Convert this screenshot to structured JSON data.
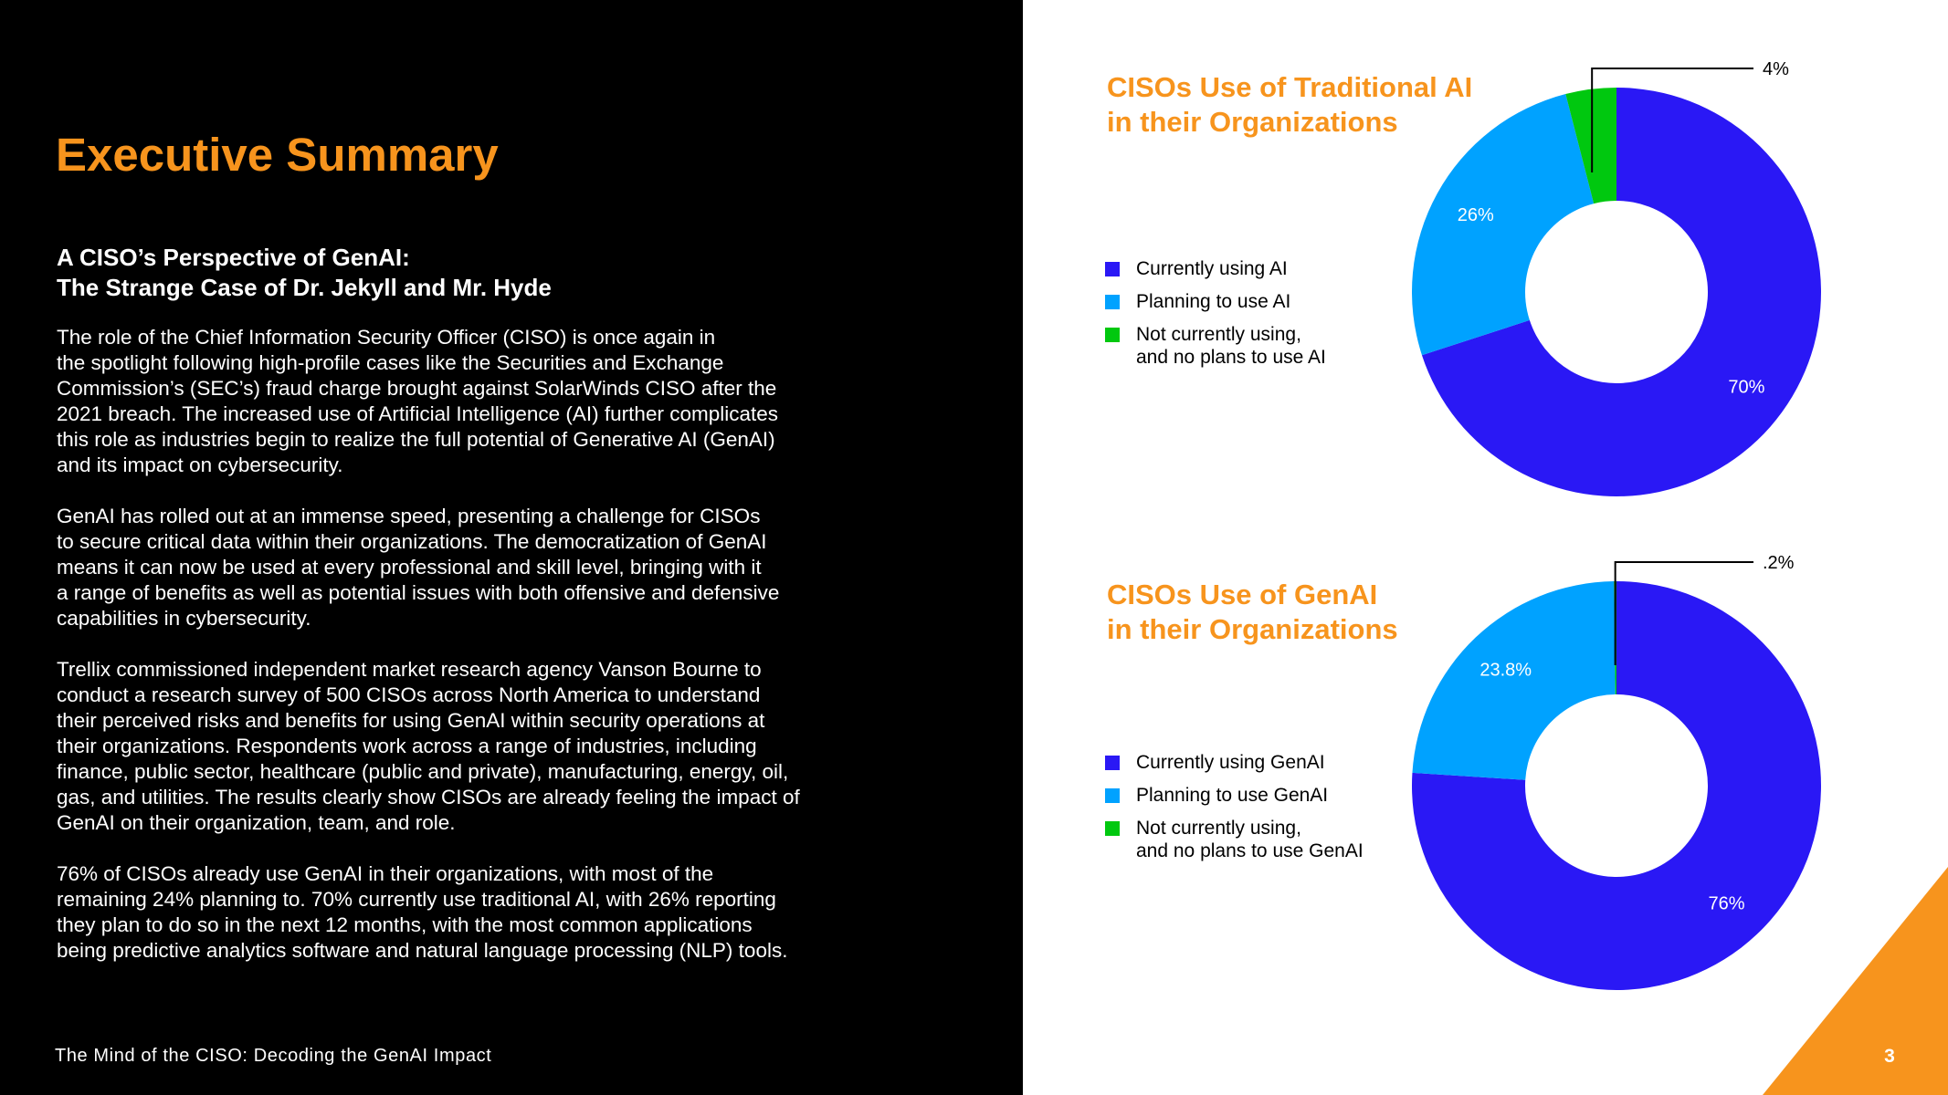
{
  "page": {
    "title": "Executive Summary",
    "subheading": [
      "A CISO’s Perspective of GenAI:",
      "The Strange Case of Dr. Jekyll and Mr. Hyde"
    ],
    "paragraphs": [
      [
        "The role of the Chief Information Security Officer (CISO) is once again in",
        "the spotlight following high-profile cases like the Securities and Exchange",
        "Commission’s (SEC’s) fraud charge brought against SolarWinds CISO after the",
        "2021 breach. The increased use of Artificial Intelligence (AI) further complicates",
        "this role as industries begin to realize the full potential of Generative AI (GenAI)",
        "and its impact on cybersecurity."
      ],
      [
        "GenAI has rolled out at an immense speed, presenting a challenge for CISOs",
        "to secure critical data within their organizations. The democratization of GenAI",
        "means it can now be used at every professional and skill level, bringing with it",
        "a range of benefits as well as potential issues with both offensive and defensive",
        "capabilities in cybersecurity."
      ],
      [
        "Trellix commissioned independent market research agency Vanson Bourne to",
        "conduct a research survey of 500 CISOs across North America to understand",
        "their perceived risks and benefits for using GenAI within security operations at",
        "their organizations. Respondents work across a range of industries, including",
        "finance, public sector, healthcare (public and private), manufacturing, energy, oil,",
        "gas, and utilities. The results clearly show CISOs are already feeling the impact of",
        "GenAI on their organization, team, and role."
      ],
      [
        "76% of CISOs already use GenAI in their organizations, with most of the",
        "remaining 24% planning to. 70% currently use traditional AI, with 26% reporting",
        "they plan to do so in the next 12 months, with the most common applications",
        "being predictive analytics software and natural language processing (NLP) tools."
      ]
    ],
    "footer": "The Mind of the CISO: Decoding the GenAI Impact",
    "page_number": "3"
  },
  "colors": {
    "accent_orange": "#f7941d",
    "current": "#2a18f5",
    "planning": "#00a2ff",
    "not_using": "#00c80f",
    "left_background": "#000000"
  },
  "chart_data": [
    {
      "type": "pie",
      "donut": true,
      "title": [
        "CISOs Use of Traditional AI",
        "in their Organizations"
      ],
      "categories": [
        "Currently using AI",
        "Planning to use AI",
        "Not currently using, and no plans to use AI"
      ],
      "legend_lines": [
        [
          "Currently using AI"
        ],
        [
          "Planning to use AI"
        ],
        [
          "Not currently using,",
          "and no plans to use AI"
        ]
      ],
      "values": [
        70,
        26,
        4
      ],
      "labels": [
        "70%",
        "26%",
        "4%"
      ],
      "colors": [
        "#2a18f5",
        "#00a2ff",
        "#00c80f"
      ],
      "legend_position": "left"
    },
    {
      "type": "pie",
      "donut": true,
      "title": [
        "CISOs Use of GenAI",
        "in their Organizations"
      ],
      "categories": [
        "Currently using GenAI",
        "Planning to use GenAI",
        "Not currently using, and no plans to use GenAI"
      ],
      "legend_lines": [
        [
          "Currently using GenAI"
        ],
        [
          "Planning to use GenAI"
        ],
        [
          "Not currently using,",
          "and no plans to use GenAI"
        ]
      ],
      "values": [
        76,
        23.8,
        0.2
      ],
      "labels": [
        "76%",
        "23.8%",
        ".2%"
      ],
      "colors": [
        "#2a18f5",
        "#00a2ff",
        "#00c80f"
      ],
      "legend_position": "left"
    }
  ]
}
